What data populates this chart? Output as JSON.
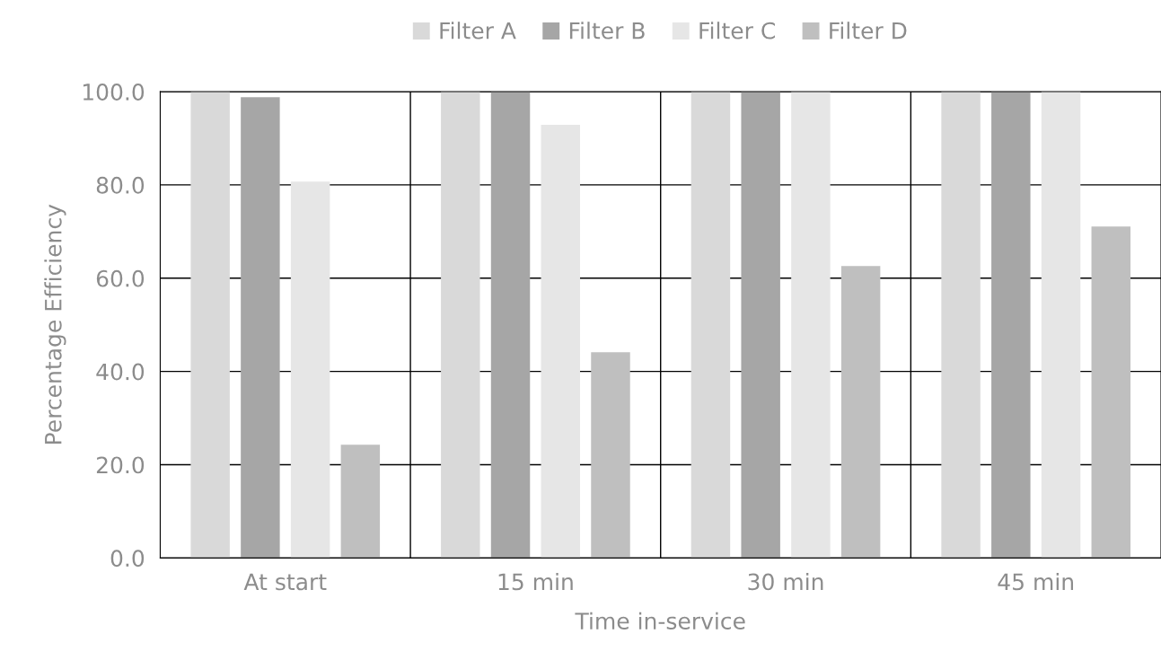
{
  "chart_data": {
    "type": "bar",
    "xlabel": "Time in-service",
    "ylabel": "Percentage Efficiency",
    "categories": [
      "At start",
      "15 min",
      "30 min",
      "45 min"
    ],
    "series": [
      {
        "name": "Filter A",
        "color": "#d9d9d9",
        "values": [
          100,
          100,
          100,
          100
        ]
      },
      {
        "name": "Filter B",
        "color": "#a6a6a6",
        "values": [
          98.8,
          100,
          100,
          100
        ]
      },
      {
        "name": "Filter C",
        "color": "#e6e6e6",
        "values": [
          80.7,
          92.9,
          100,
          100
        ]
      },
      {
        "name": "Filter D",
        "color": "#bfbfbf",
        "values": [
          24.3,
          44.1,
          62.6,
          71.1
        ]
      }
    ],
    "ylim": [
      0,
      100
    ],
    "yticks": [
      {
        "value": 0,
        "label": "0.0"
      },
      {
        "value": 20,
        "label": "20.0"
      },
      {
        "value": 40,
        "label": "40.0"
      },
      {
        "value": 60,
        "label": "60.0"
      },
      {
        "value": 80,
        "label": "80.0"
      },
      {
        "value": 100,
        "label": "100.0"
      }
    ],
    "grid": true,
    "legend": "top"
  }
}
